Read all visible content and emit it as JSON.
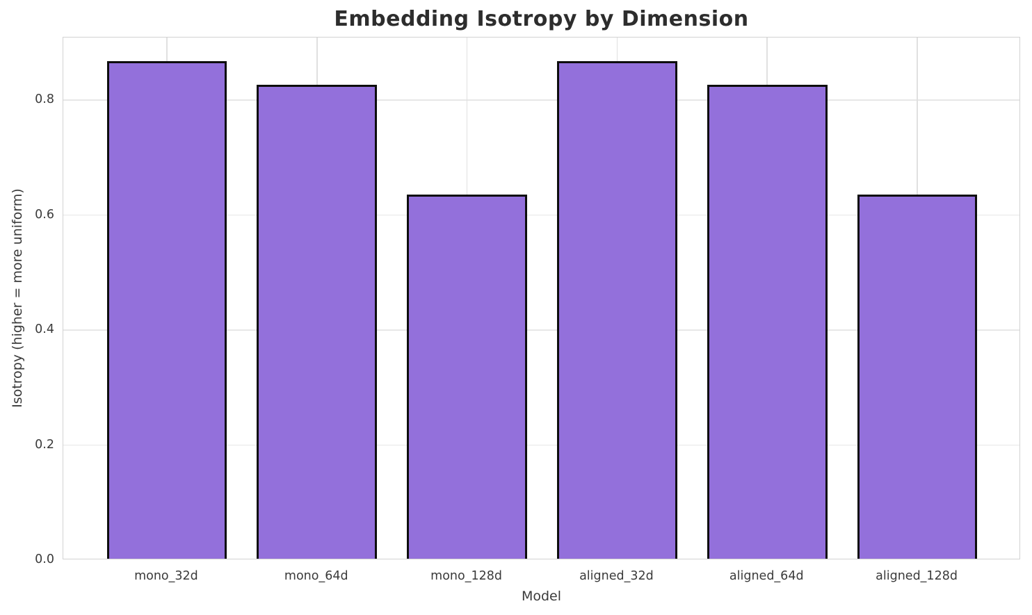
{
  "chart_data": {
    "type": "bar",
    "title": "Embedding Isotropy by Dimension",
    "xlabel": "Model",
    "ylabel": "Isotropy (higher = more uniform)",
    "categories": [
      "mono_32d",
      "mono_64d",
      "mono_128d",
      "aligned_32d",
      "aligned_64d",
      "aligned_128d"
    ],
    "values": [
      0.866,
      0.824,
      0.633,
      0.866,
      0.824,
      0.633
    ],
    "yticks": [
      0.0,
      0.2,
      0.4,
      0.6,
      0.8
    ],
    "ytick_labels": [
      "0.0",
      "0.2",
      "0.4",
      "0.6",
      "0.8"
    ],
    "ylim": [
      0,
      0.909
    ],
    "xlim": [
      -0.69,
      5.69
    ],
    "bar_width": 0.8,
    "grid": true,
    "legend": null,
    "colors": {
      "bar_fill": "#9370DB",
      "bar_edge": "#0d0d0d",
      "grid": "#e7e7e7",
      "spine": "#d2d2d2",
      "tick_text": "#3a3a3a",
      "title_text": "#2d2d2d",
      "background": "#ffffff"
    }
  }
}
